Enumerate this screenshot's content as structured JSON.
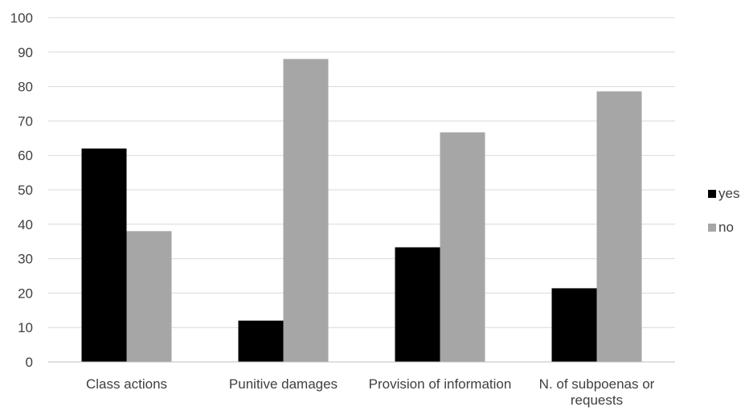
{
  "chart_data": {
    "type": "bar",
    "title": "",
    "xlabel": "",
    "ylabel": "",
    "ylim": [
      0,
      100
    ],
    "yticks": [
      0,
      10,
      20,
      30,
      40,
      50,
      60,
      70,
      80,
      90,
      100
    ],
    "grid": true,
    "legend_position": "right",
    "categories": [
      [
        "Class actions"
      ],
      [
        "Punitive damages"
      ],
      [
        "Provision of information"
      ],
      [
        "N. of subpoenas or",
        "requests"
      ]
    ],
    "series": [
      {
        "name": "yes",
        "color": "#000000",
        "values": [
          62,
          12,
          33.3,
          21.4
        ]
      },
      {
        "name": "no",
        "color": "#a6a6a6",
        "values": [
          38,
          88,
          66.7,
          78.6
        ]
      }
    ],
    "gridline_color": "#d9d9d9",
    "axis_color": "#bfbfbf"
  }
}
